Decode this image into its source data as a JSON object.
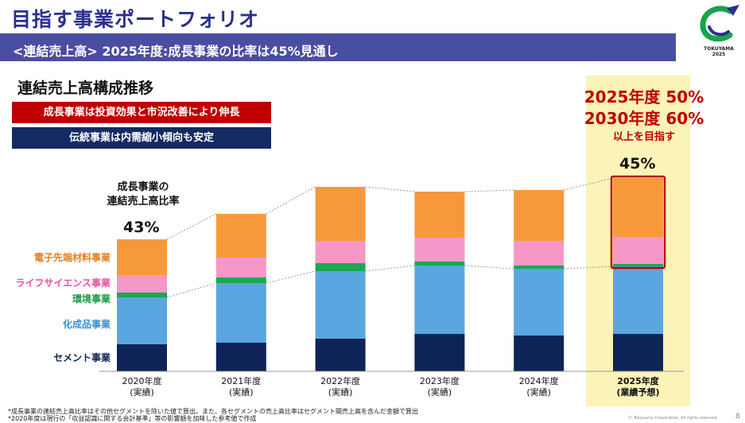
{
  "header": {
    "title": "目指す事業ポートフォリオ",
    "banner": "<連結売上高> 2025年度:成長事業の比率は45%見通し",
    "logo_text": "TOKUYAMA",
    "logo_year": "2025"
  },
  "chart_heading": "連結売上高構成推移",
  "boxes": {
    "red": "成長事業は投資効果と市況改善により伸長",
    "navy": "伝統事業は内需縮小傾向も安定"
  },
  "target": {
    "line1": "2025年度 50%",
    "line2": "2030年度 60%",
    "line3": "以上を目指す"
  },
  "ratio_label": {
    "line1": "成長事業の",
    "line2": "連結売上高比率"
  },
  "ratios": {
    "first": "43%",
    "last": "45%"
  },
  "colors": {
    "cement": "#0e2458",
    "chemicals": "#5aa6e0",
    "environment": "#18a851",
    "life_science": "#f598c8",
    "electronic": "#f7993a",
    "accent_red": "#c00000",
    "highlight": "#fbf3b8"
  },
  "chart_data": {
    "type": "bar",
    "stacked": true,
    "categories": [
      {
        "year": "2020年度",
        "note": "(実績)"
      },
      {
        "year": "2021年度",
        "note": "(実績)"
      },
      {
        "year": "2022年度",
        "note": "(実績)"
      },
      {
        "year": "2023年度",
        "note": "(実績)"
      },
      {
        "year": "2024年度",
        "note": "(実績)"
      },
      {
        "year": "2025年度",
        "note": "(業績予想)"
      }
    ],
    "series": [
      {
        "name": "セメント事業",
        "key": "cement",
        "values": [
          34,
          36,
          41,
          47,
          45,
          47
        ]
      },
      {
        "name": "化成品事業",
        "key": "chemicals",
        "values": [
          59,
          75,
          85,
          86,
          84,
          85
        ]
      },
      {
        "name": "環境事業",
        "key": "environment",
        "values": [
          6,
          7,
          10,
          5,
          4,
          3
        ]
      },
      {
        "name": "ライフサイエンス事業",
        "key": "life_science",
        "values": [
          22,
          25,
          28,
          30,
          31,
          34
        ]
      },
      {
        "name": "電子先端材料事業",
        "key": "electronic",
        "values": [
          45,
          55,
          68,
          58,
          64,
          74
        ]
      }
    ],
    "highlight_index": 5,
    "ylabel": "",
    "legend_placement": "left"
  },
  "footnotes": [
    "*成長事業の連結売上高比率はその他セグメントを除いた値で算出。また、各セグメントの売上高比率はセグメント間売上高を含んだ金額で算出",
    "*2020年度は現行の「収益認識に関する会計基準」等の影響額を加味した参考値で作成"
  ],
  "copyright": "© Tokuyama Corporation, All rights reserved",
  "page_number": "8"
}
